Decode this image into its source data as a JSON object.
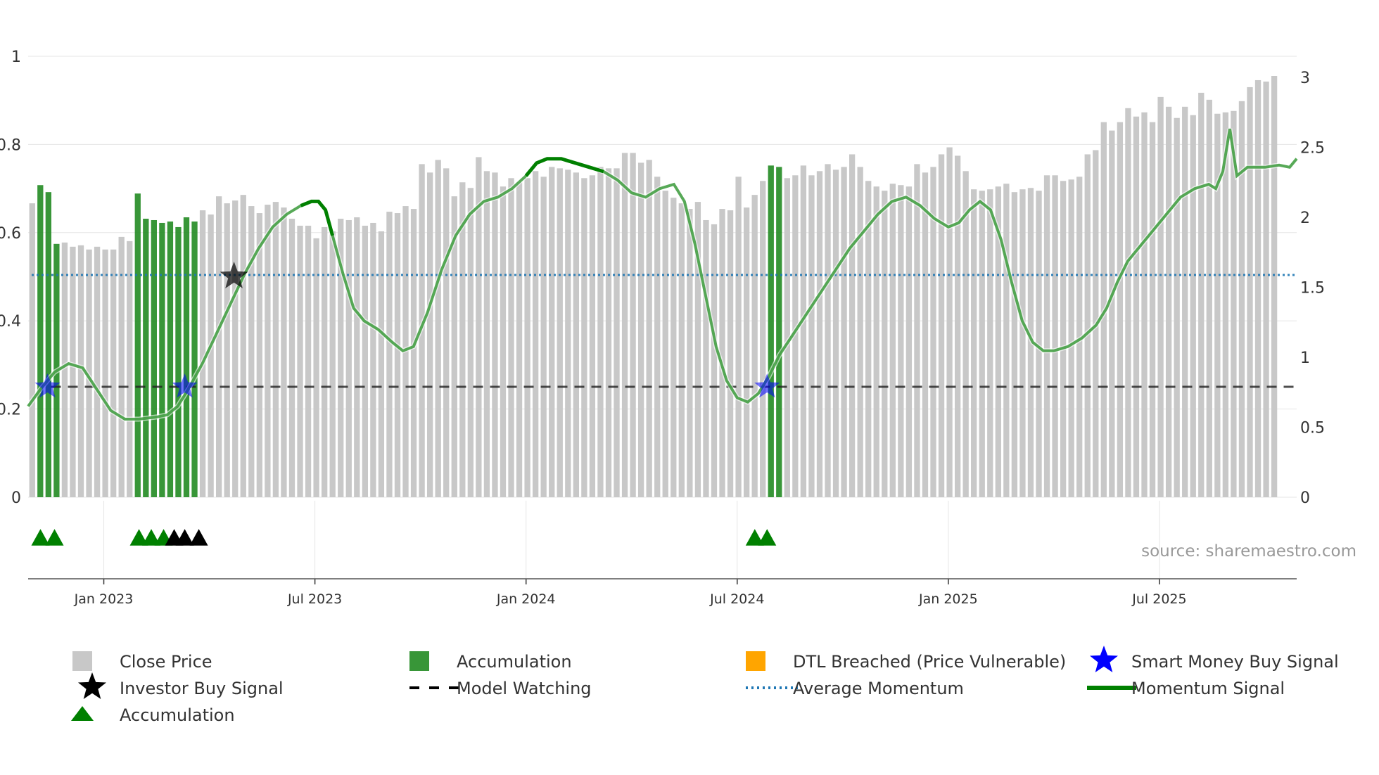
{
  "colors": {
    "close_price": "#c8c8c8",
    "accumulation_bar": "#228b22",
    "dtl_breached": "#ffa500",
    "smart_money": "#0000ff",
    "investor_buy": "#000000",
    "triangle_accumulation": "#008000",
    "model_watching": "#000000",
    "average_momentum": "#1f77b4",
    "momentum": "#008000",
    "grid": "#e5e5e5"
  },
  "chart_data": {
    "type": "bar",
    "title": "",
    "source": "source: sharemaestro.com",
    "left_axis": {
      "ylim": [
        0,
        1
      ],
      "ticks": [
        "0",
        "0.2",
        "0.4",
        "0.6",
        "0.8",
        "1"
      ]
    },
    "right_axis": {
      "ylim": [
        0,
        3
      ],
      "ticks": [
        "0",
        "0.5",
        "1",
        "1.5",
        "2",
        "2.5",
        "3"
      ]
    },
    "x_ticks": [
      "Jan 2023",
      "Jul 2023",
      "Jan 2024",
      "Jul 2024",
      "Jan 2025",
      "Jul 2025"
    ],
    "x_tick_months": [
      4,
      10,
      16,
      22,
      28,
      34
    ],
    "x_range_months": [
      1.85,
      37.9
    ],
    "bar_series": {
      "name": "Close Price",
      "axis": "right",
      "months_per_bar": 0.2307,
      "values": [
        2.1,
        2.23,
        2.18,
        1.81,
        1.82,
        1.79,
        1.8,
        1.77,
        1.79,
        1.77,
        1.77,
        1.86,
        1.83,
        2.17,
        1.99,
        1.98,
        1.96,
        1.97,
        1.93,
        2.0,
        1.97,
        2.05,
        2.02,
        2.15,
        2.1,
        2.12,
        2.16,
        2.08,
        2.03,
        2.09,
        2.11,
        2.07,
        1.99,
        1.94,
        1.94,
        1.85,
        1.93,
        1.9,
        1.99,
        1.98,
        2.0,
        1.94,
        1.96,
        1.9,
        2.04,
        2.03,
        2.08,
        2.06,
        2.38,
        2.32,
        2.41,
        2.35,
        2.15,
        2.25,
        2.21,
        2.43,
        2.33,
        2.32,
        2.22,
        2.28,
        2.25,
        2.28,
        2.33,
        2.29,
        2.36,
        2.35,
        2.34,
        2.32,
        2.28,
        2.3,
        2.36,
        2.35,
        2.35,
        2.46,
        2.46,
        2.39,
        2.41,
        2.29,
        2.19,
        2.14,
        2.1,
        2.06,
        2.11,
        1.98,
        1.95,
        2.06,
        2.05,
        2.29,
        2.07,
        2.16,
        2.26,
        2.37,
        2.36,
        2.28,
        2.3,
        2.37,
        2.3,
        2.33,
        2.38,
        2.34,
        2.36,
        2.45,
        2.36,
        2.26,
        2.22,
        2.19,
        2.24,
        2.23,
        2.22,
        2.38,
        2.32,
        2.36,
        2.45,
        2.5,
        2.44,
        2.33,
        2.2,
        2.19,
        2.2,
        2.22,
        2.24,
        2.18,
        2.2,
        2.21,
        2.19,
        2.3,
        2.3,
        2.26,
        2.27,
        2.29,
        2.45,
        2.48,
        2.68,
        2.62,
        2.68,
        2.78,
        2.72,
        2.75,
        2.68,
        2.86,
        2.79,
        2.71,
        2.79,
        2.73,
        2.89,
        2.84,
        2.74,
        2.75,
        2.76,
        2.83,
        2.93,
        2.98,
        2.97,
        3.01
      ],
      "accumulation_bars": [
        1,
        2,
        3,
        13,
        14,
        15,
        16,
        17,
        18,
        19,
        20,
        91,
        92
      ]
    },
    "momentum_series": {
      "name": "Momentum Signal",
      "axis": "left",
      "points": [
        [
          1.85,
          0.18
        ],
        [
          2.2,
          0.22
        ],
        [
          2.6,
          0.26
        ],
        [
          3.0,
          0.28
        ],
        [
          3.4,
          0.27
        ],
        [
          3.8,
          0.22
        ],
        [
          4.2,
          0.17
        ],
        [
          4.6,
          0.15
        ],
        [
          5.0,
          0.15
        ],
        [
          5.5,
          0.155
        ],
        [
          5.8,
          0.16
        ],
        [
          6.1,
          0.18
        ],
        [
          6.4,
          0.22
        ],
        [
          6.8,
          0.28
        ],
        [
          7.2,
          0.35
        ],
        [
          7.6,
          0.42
        ],
        [
          8.0,
          0.49
        ],
        [
          8.4,
          0.55
        ],
        [
          8.8,
          0.6
        ],
        [
          9.2,
          0.63
        ],
        [
          9.6,
          0.65
        ],
        [
          9.9,
          0.66
        ],
        [
          10.1,
          0.66
        ],
        [
          10.3,
          0.64
        ],
        [
          10.5,
          0.58
        ],
        [
          10.8,
          0.49
        ],
        [
          11.1,
          0.41
        ],
        [
          11.4,
          0.38
        ],
        [
          11.8,
          0.36
        ],
        [
          12.2,
          0.33
        ],
        [
          12.5,
          0.31
        ],
        [
          12.8,
          0.32
        ],
        [
          13.2,
          0.4
        ],
        [
          13.6,
          0.5
        ],
        [
          14.0,
          0.58
        ],
        [
          14.4,
          0.63
        ],
        [
          14.8,
          0.66
        ],
        [
          15.2,
          0.67
        ],
        [
          15.6,
          0.69
        ],
        [
          16.0,
          0.72
        ],
        [
          16.3,
          0.75
        ],
        [
          16.6,
          0.76
        ],
        [
          17.0,
          0.76
        ],
        [
          17.4,
          0.75
        ],
        [
          17.8,
          0.74
        ],
        [
          18.2,
          0.73
        ],
        [
          18.6,
          0.71
        ],
        [
          19.0,
          0.68
        ],
        [
          19.4,
          0.67
        ],
        [
          19.8,
          0.69
        ],
        [
          20.2,
          0.7
        ],
        [
          20.5,
          0.66
        ],
        [
          20.8,
          0.56
        ],
        [
          21.1,
          0.44
        ],
        [
          21.4,
          0.32
        ],
        [
          21.7,
          0.24
        ],
        [
          22.0,
          0.2
        ],
        [
          22.3,
          0.19
        ],
        [
          22.6,
          0.21
        ],
        [
          22.9,
          0.25
        ],
        [
          23.2,
          0.3
        ],
        [
          23.6,
          0.35
        ],
        [
          24.0,
          0.4
        ],
        [
          24.4,
          0.45
        ],
        [
          24.8,
          0.5
        ],
        [
          25.2,
          0.55
        ],
        [
          25.6,
          0.59
        ],
        [
          26.0,
          0.63
        ],
        [
          26.4,
          0.66
        ],
        [
          26.8,
          0.67
        ],
        [
          27.2,
          0.65
        ],
        [
          27.6,
          0.62
        ],
        [
          28.0,
          0.6
        ],
        [
          28.3,
          0.61
        ],
        [
          28.6,
          0.64
        ],
        [
          28.9,
          0.66
        ],
        [
          29.2,
          0.64
        ],
        [
          29.5,
          0.57
        ],
        [
          29.8,
          0.47
        ],
        [
          30.1,
          0.38
        ],
        [
          30.4,
          0.33
        ],
        [
          30.7,
          0.31
        ],
        [
          31.0,
          0.31
        ],
        [
          31.4,
          0.32
        ],
        [
          31.8,
          0.34
        ],
        [
          32.2,
          0.37
        ],
        [
          32.5,
          0.41
        ],
        [
          32.8,
          0.47
        ],
        [
          33.1,
          0.52
        ],
        [
          33.4,
          0.55
        ],
        [
          33.8,
          0.59
        ],
        [
          34.2,
          0.63
        ],
        [
          34.6,
          0.67
        ],
        [
          35.0,
          0.69
        ],
        [
          35.4,
          0.7
        ],
        [
          35.6,
          0.69
        ],
        [
          35.8,
          0.73
        ],
        [
          36.0,
          0.83
        ],
        [
          36.2,
          0.72
        ],
        [
          36.5,
          0.74
        ],
        [
          37.0,
          0.74
        ],
        [
          37.4,
          0.745
        ],
        [
          37.7,
          0.74
        ],
        [
          37.9,
          0.76
        ]
      ],
      "highlight_ranges": [
        [
          9.6,
          10.6
        ],
        [
          16.0,
          18.2
        ]
      ]
    },
    "average_momentum": {
      "name": "Average Momentum",
      "value": 0.5,
      "axis": "left"
    },
    "model_watching": {
      "name": "Model Watching",
      "value": 0.25,
      "axis": "left",
      "start_month": 2.5
    },
    "smart_money_signals": [
      {
        "month": 2.4,
        "y": 0.25
      },
      {
        "month": 6.3,
        "y": 0.25
      },
      {
        "month": 22.85,
        "y": 0.25
      }
    ],
    "investor_buy_signals": [
      {
        "month": 7.7,
        "y": 0.5
      }
    ],
    "accumulation_triangles": [
      2.2,
      2.6,
      5.0,
      5.35,
      5.7,
      22.5,
      22.85
    ],
    "investor_triangles": [
      6.0,
      6.3,
      6.7
    ],
    "legend": [
      {
        "label": "Close Price",
        "kind": "square",
        "color": "close_price"
      },
      {
        "label": "Accumulation",
        "kind": "square",
        "color": "accumulation_bar"
      },
      {
        "label": "DTL Breached (Price Vulnerable)",
        "kind": "square",
        "color": "dtl_breached"
      },
      {
        "label": "Smart Money Buy Signal",
        "kind": "star",
        "color": "smart_money"
      },
      {
        "label": "Investor Buy Signal",
        "kind": "star",
        "color": "investor_buy"
      },
      {
        "label": "Model Watching",
        "kind": "dash",
        "color": "model_watching"
      },
      {
        "label": "Average Momentum",
        "kind": "dot",
        "color": "average_momentum"
      },
      {
        "label": "Momentum Signal",
        "kind": "line",
        "color": "momentum"
      },
      {
        "label": "Accumulation",
        "kind": "triangle",
        "color": "triangle_accumulation"
      }
    ]
  }
}
